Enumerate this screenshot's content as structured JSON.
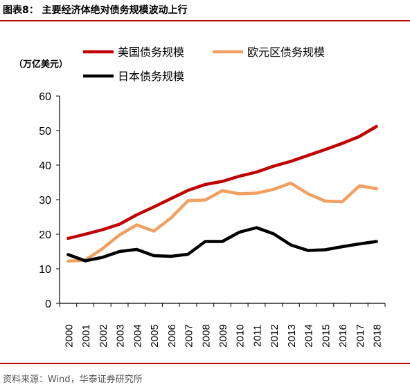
{
  "title": "图表8： 主要经济体绝对债务规模波动上行",
  "source": "资料来源：Wind，华泰证券研究所",
  "rule_color": "#c00000",
  "chart_data": {
    "type": "line",
    "ylabel": "（万亿美元）",
    "ylim": [
      0,
      60
    ],
    "yticks": [
      0,
      10,
      20,
      30,
      40,
      50,
      60
    ],
    "grid": false,
    "legend_position": "top",
    "x": [
      "2000",
      "2001",
      "2002",
      "2003",
      "2004",
      "2005",
      "2006",
      "2007",
      "2008",
      "2009",
      "2010",
      "2011",
      "2012",
      "2013",
      "2014",
      "2015",
      "2016",
      "2017",
      "2018"
    ],
    "series": [
      {
        "name": "美国债务规模",
        "color": "#c00000",
        "values": [
          18.8,
          20.0,
          21.3,
          22.9,
          25.6,
          27.9,
          30.3,
          32.7,
          34.4,
          35.3,
          36.8,
          38.0,
          39.7,
          41.1,
          42.8,
          44.5,
          46.3,
          48.3,
          51.2
        ]
      },
      {
        "name": "欧元区债务规模",
        "color": "#f0a060",
        "values": [
          12.2,
          12.5,
          15.8,
          19.8,
          22.7,
          20.9,
          24.7,
          29.7,
          29.9,
          32.6,
          31.7,
          31.9,
          33.0,
          34.8,
          31.7,
          29.6,
          29.4,
          34.0,
          33.2
        ]
      },
      {
        "name": "日本债务规模",
        "color": "#000000",
        "values": [
          14.1,
          12.3,
          13.3,
          15.0,
          15.6,
          13.8,
          13.6,
          14.2,
          17.9,
          17.9,
          20.6,
          21.9,
          20.1,
          16.9,
          15.3,
          15.5,
          16.4,
          17.2,
          17.9
        ]
      }
    ]
  }
}
